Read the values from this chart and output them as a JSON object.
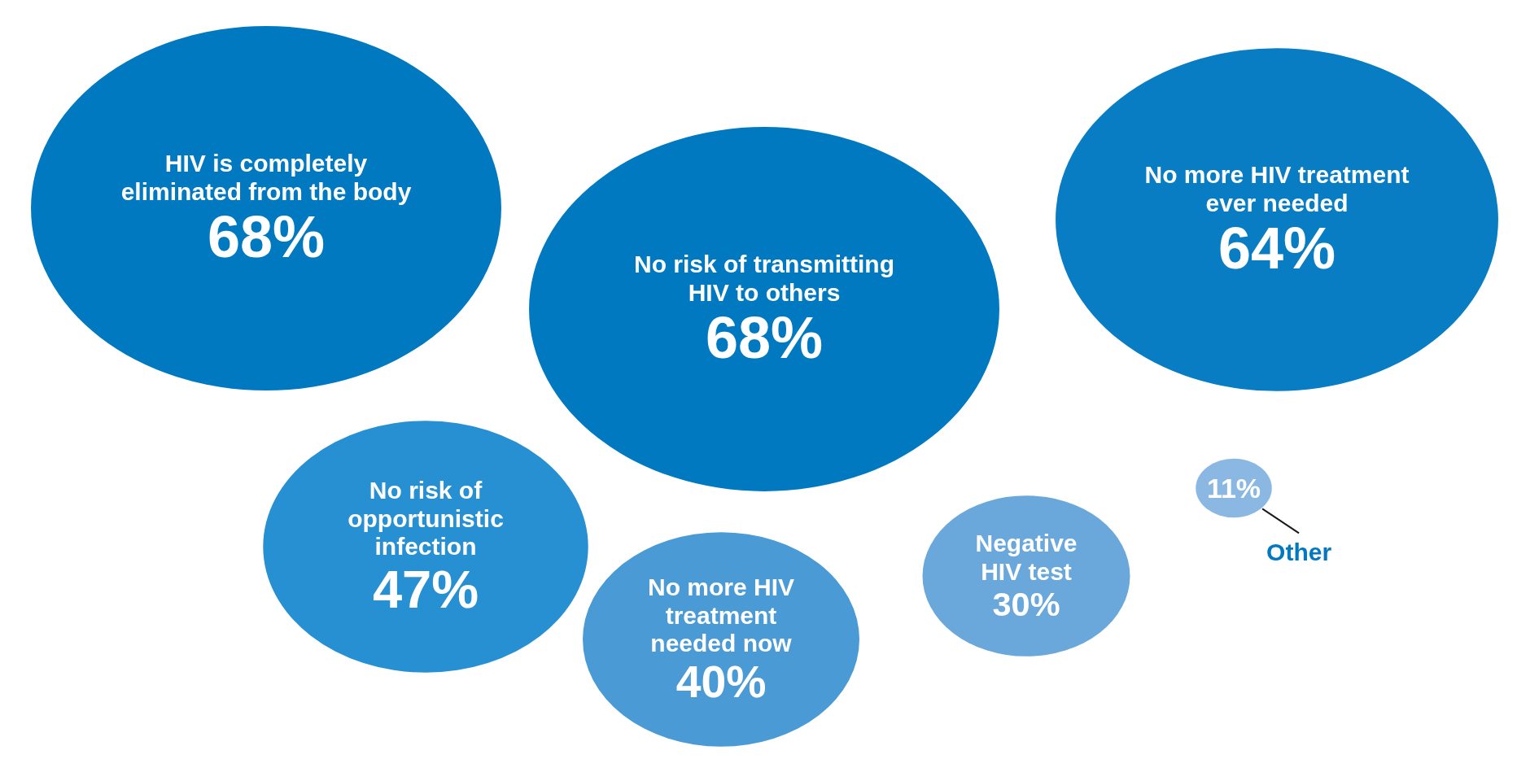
{
  "chart_data": {
    "type": "other",
    "categories": [
      "HIV is completely eliminated from the body",
      "No risk of transmitting HIV to others",
      "No more HIV treatment ever needed",
      "No risk of opportunistic infection",
      "No more HIV treatment needed now",
      "Negative HIV test",
      "Other"
    ],
    "values": [
      68,
      68,
      64,
      47,
      40,
      30,
      11
    ],
    "value_labels": [
      "68%",
      "68%",
      "64%",
      "47%",
      "40%",
      "30%",
      "11%"
    ],
    "colors": [
      "#0079c1",
      "#0079c1",
      "#087dc4",
      "#2690d3",
      "#4a9ad6",
      "#6aa8dc",
      "#8ab8e3"
    ]
  }
}
